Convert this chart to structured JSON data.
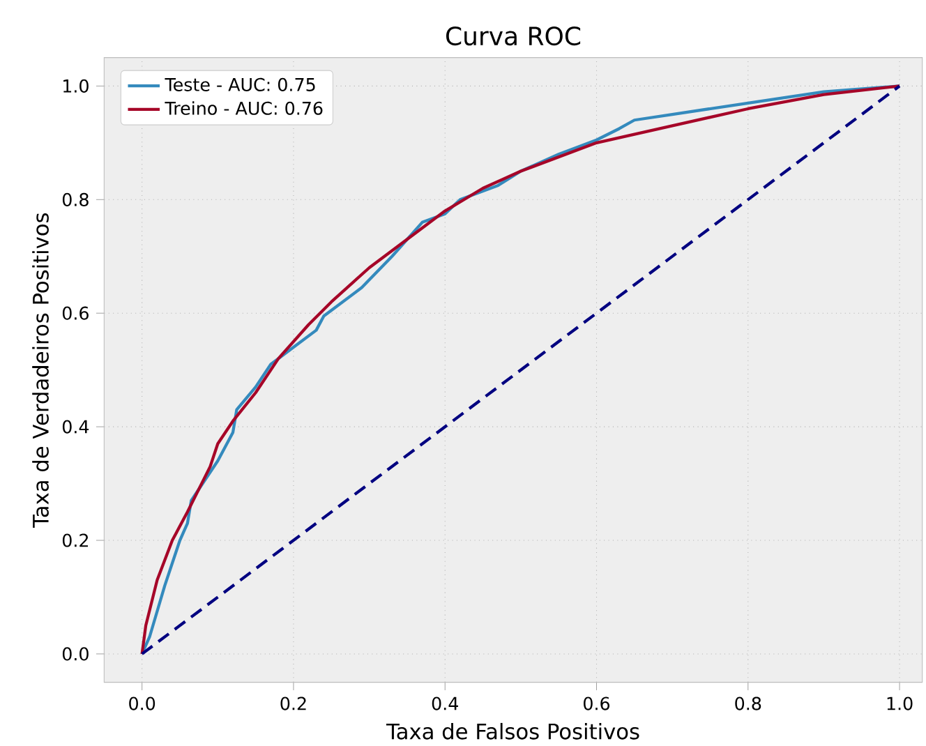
{
  "chart_data": {
    "type": "line",
    "title": "Curva ROC",
    "xlabel": "Taxa de Falsos Positivos",
    "ylabel": "Taxa de Verdadeiros Positivos",
    "xlim": [
      -0.05,
      1.03
    ],
    "ylim": [
      -0.05,
      1.05
    ],
    "xticks": [
      {
        "value": 0,
        "label": "0.0"
      },
      0.2,
      0.4,
      0.6,
      0.8,
      {
        "value": 1,
        "label": "1.0"
      }
    ],
    "yticks": [
      {
        "value": 0,
        "label": "0.0"
      },
      0.2,
      0.4,
      0.6,
      0.8,
      {
        "value": 1,
        "label": "1.0"
      }
    ],
    "grid": true,
    "legend": "top left",
    "marker": "none",
    "series": [
      {
        "name": "Teste - AUC: 0.75",
        "color": "#348abd",
        "line_style": "solid",
        "x": [
          0,
          0.01,
          0.03,
          0.05,
          0.06,
          0.065,
          0.1,
          0.12,
          0.125,
          0.15,
          0.17,
          0.2,
          0.23,
          0.24,
          0.29,
          0.33,
          0.37,
          0.4,
          0.42,
          0.47,
          0.5,
          0.55,
          0.6,
          0.63,
          0.65,
          0.7,
          0.8,
          0.9,
          1
        ],
        "values": [
          0,
          0.03,
          0.12,
          0.2,
          0.23,
          0.27,
          0.34,
          0.39,
          0.43,
          0.47,
          0.51,
          0.54,
          0.57,
          0.595,
          0.645,
          0.7,
          0.76,
          0.775,
          0.8,
          0.825,
          0.85,
          0.88,
          0.905,
          0.925,
          0.94,
          0.95,
          0.97,
          0.99,
          1
        ]
      },
      {
        "name": "Treino - AUC: 0.76",
        "color": "#a60628",
        "line_style": "solid",
        "x": [
          0,
          0.005,
          0.02,
          0.04,
          0.06,
          0.09,
          0.1,
          0.12,
          0.15,
          0.18,
          0.22,
          0.25,
          0.3,
          0.35,
          0.4,
          0.45,
          0.5,
          0.6,
          0.7,
          0.8,
          0.9,
          1
        ],
        "values": [
          0,
          0.05,
          0.13,
          0.2,
          0.25,
          0.33,
          0.37,
          0.41,
          0.46,
          0.52,
          0.58,
          0.62,
          0.68,
          0.73,
          0.78,
          0.82,
          0.85,
          0.9,
          0.93,
          0.96,
          0.985,
          1
        ]
      },
      {
        "color": "#000080",
        "line_style": "dashed",
        "x": [
          0,
          1
        ],
        "values": [
          0,
          1
        ]
      }
    ]
  }
}
